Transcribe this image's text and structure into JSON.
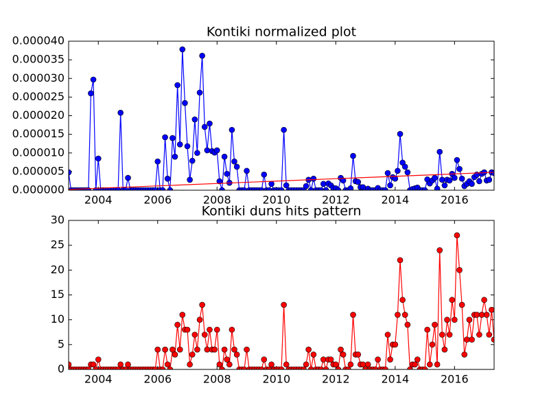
{
  "chart_data": [
    {
      "type": "line",
      "title": "Kontiki normalized plot",
      "xlim": [
        2003,
        2017.333
      ],
      "xticks": [
        2004,
        2006,
        2008,
        2010,
        2012,
        2014,
        2016
      ],
      "ylim": [
        0,
        4e-05
      ],
      "yticks": [
        {
          "value": 0,
          "label": "0.000000"
        },
        {
          "value": 5e-06,
          "label": "0.000005"
        },
        {
          "value": 1e-05,
          "label": "0.000010"
        },
        {
          "value": 1.5e-05,
          "label": "0.000015"
        },
        {
          "value": 2e-05,
          "label": "0.000020"
        },
        {
          "value": 2.5e-05,
          "label": "0.000025"
        },
        {
          "value": 3e-05,
          "label": "0.000030"
        },
        {
          "value": 3.5e-05,
          "label": "0.000035"
        },
        {
          "value": 4e-05,
          "label": "0.000040"
        }
      ],
      "series": [
        {
          "color": "#0000ff",
          "marker": true,
          "x": [
            2003,
            2003.083,
            2003.167,
            2003.25,
            2003.333,
            2003.417,
            2003.5,
            2003.583,
            2003.667,
            2003.75,
            2003.833,
            2003.917,
            2004,
            2004.083,
            2004.167,
            2004.25,
            2004.333,
            2004.417,
            2004.5,
            2004.583,
            2004.667,
            2004.75,
            2004.833,
            2004.917,
            2005,
            2005.083,
            2005.167,
            2005.25,
            2005.333,
            2005.417,
            2005.5,
            2005.583,
            2005.667,
            2005.75,
            2005.833,
            2005.917,
            2006,
            2006.083,
            2006.167,
            2006.25,
            2006.333,
            2006.417,
            2006.5,
            2006.583,
            2006.667,
            2006.75,
            2006.833,
            2006.917,
            2007,
            2007.083,
            2007.167,
            2007.25,
            2007.333,
            2007.417,
            2007.5,
            2007.583,
            2007.667,
            2007.75,
            2007.833,
            2007.917,
            2008,
            2008.083,
            2008.167,
            2008.25,
            2008.333,
            2008.417,
            2008.5,
            2008.583,
            2008.667,
            2008.75,
            2008.833,
            2008.917,
            2009,
            2009.083,
            2009.167,
            2009.25,
            2009.333,
            2009.417,
            2009.5,
            2009.583,
            2009.667,
            2009.75,
            2009.833,
            2009.917,
            2010,
            2010.083,
            2010.167,
            2010.25,
            2010.333,
            2010.417,
            2010.5,
            2010.583,
            2010.667,
            2010.75,
            2010.833,
            2010.917,
            2011,
            2011.083,
            2011.167,
            2011.25,
            2011.333,
            2011.417,
            2011.5,
            2011.583,
            2011.667,
            2011.75,
            2011.833,
            2011.917,
            2012,
            2012.083,
            2012.167,
            2012.25,
            2012.333,
            2012.417,
            2012.5,
            2012.583,
            2012.667,
            2012.75,
            2012.833,
            2012.917,
            2013,
            2013.083,
            2013.167,
            2013.25,
            2013.333,
            2013.417,
            2013.5,
            2013.583,
            2013.667,
            2013.75,
            2013.833,
            2013.917,
            2014,
            2014.083,
            2014.167,
            2014.25,
            2014.333,
            2014.417,
            2014.5,
            2014.583,
            2014.667,
            2014.75,
            2014.833,
            2014.917,
            2015,
            2015.083,
            2015.167,
            2015.25,
            2015.333,
            2015.417,
            2015.5,
            2015.583,
            2015.667,
            2015.75,
            2015.833,
            2015.917,
            2016,
            2016.083,
            2016.167,
            2016.25,
            2016.333,
            2016.417,
            2016.5,
            2016.583,
            2016.667,
            2016.75,
            2016.833,
            2016.917,
            2017,
            2017.083,
            2017.167,
            2017.25,
            2017.333
          ],
          "values": [
            4.8e-06,
            0,
            0,
            0,
            0,
            0,
            0,
            0,
            0,
            2.6e-05,
            2.97e-05,
            0,
            8.5e-06,
            0,
            0,
            0,
            0,
            0,
            0,
            0,
            0,
            2.08e-05,
            0,
            0,
            3.3e-06,
            0,
            0,
            0,
            0,
            0,
            0,
            0,
            0,
            0,
            0,
            0,
            7.7e-06,
            0,
            0,
            1.42e-05,
            3.1e-06,
            0,
            1.4e-05,
            9e-06,
            2.82e-05,
            1.23e-05,
            3.78e-05,
            2.34e-05,
            1.18e-05,
            2.8e-06,
            7.9e-06,
            1.9e-05,
            1e-05,
            2.62e-05,
            3.61e-05,
            1.7e-05,
            1.07e-05,
            1.79e-05,
            1.05e-05,
            1.01e-05,
            1.07e-05,
            2.4e-06,
            0,
            9e-06,
            4.4e-06,
            2e-06,
            1.62e-05,
            7.7e-06,
            6.3e-06,
            0,
            0,
            0,
            5.2e-06,
            0,
            0,
            0,
            0,
            0,
            0,
            4.2e-06,
            0,
            0,
            1.7e-06,
            0,
            0,
            0,
            0,
            1.62e-05,
            1.3e-06,
            0,
            0,
            0,
            0,
            0,
            0,
            0,
            1.1e-06,
            2.8e-06,
            0,
            3.1e-06,
            0,
            0,
            0,
            1.7e-06,
            0,
            1.8e-06,
            1.3e-06,
            6e-07,
            5e-07,
            0,
            3.3e-06,
            2.6e-06,
            0,
            0,
            5e-07,
            9.2e-06,
            2.4e-06,
            2.2e-06,
            8e-07,
            8e-07,
            0,
            4e-07,
            0,
            0,
            0,
            6e-07,
            0,
            0,
            0,
            4.6e-06,
            1.3e-06,
            3.5e-06,
            3.1e-06,
            5.2e-06,
            1.51e-05,
            7.4e-06,
            6.3e-06,
            4.8e-06,
            0,
            3e-07,
            5e-07,
            7e-07,
            0,
            0,
            0,
            2.9e-06,
            1.8e-06,
            2.6e-06,
            3.3e-06,
            4e-07,
            1.03e-05,
            2.8e-06,
            1.3e-06,
            2.8e-06,
            2.6e-06,
            4.4e-06,
            3.3e-06,
            8.1e-06,
            5.7e-06,
            3.1e-06,
            1.1e-06,
            1.7e-06,
            2.4e-06,
            1.7e-06,
            3.5e-06,
            4.2e-06,
            2.4e-06,
            4.4e-06,
            4.8e-06,
            2.6e-06,
            2.8e-06,
            4.8e-06,
            4.6e-06
          ]
        },
        {
          "color": "#ff0000",
          "marker": false,
          "x": [
            2003,
            2017.333
          ],
          "values": [
            2e-07,
            4.8e-06
          ]
        }
      ]
    },
    {
      "type": "line",
      "title": "Kontiki duns hits pattern",
      "xlim": [
        2003,
        2017.333
      ],
      "xticks": [
        2004,
        2006,
        2008,
        2010,
        2012,
        2014,
        2016
      ],
      "ylim": [
        0,
        30
      ],
      "yticks": [
        0,
        5,
        10,
        15,
        20,
        25,
        30
      ],
      "series": [
        {
          "color": "#ff0000",
          "marker": true,
          "x": [
            2003,
            2003.083,
            2003.167,
            2003.25,
            2003.333,
            2003.417,
            2003.5,
            2003.583,
            2003.667,
            2003.75,
            2003.833,
            2003.917,
            2004,
            2004.083,
            2004.167,
            2004.25,
            2004.333,
            2004.417,
            2004.5,
            2004.583,
            2004.667,
            2004.75,
            2004.833,
            2004.917,
            2005,
            2005.083,
            2005.167,
            2005.25,
            2005.333,
            2005.417,
            2005.5,
            2005.583,
            2005.667,
            2005.75,
            2005.833,
            2005.917,
            2006,
            2006.083,
            2006.167,
            2006.25,
            2006.333,
            2006.417,
            2006.5,
            2006.583,
            2006.667,
            2006.75,
            2006.833,
            2006.917,
            2007,
            2007.083,
            2007.167,
            2007.25,
            2007.333,
            2007.417,
            2007.5,
            2007.583,
            2007.667,
            2007.75,
            2007.833,
            2007.917,
            2008,
            2008.083,
            2008.167,
            2008.25,
            2008.333,
            2008.417,
            2008.5,
            2008.583,
            2008.667,
            2008.75,
            2008.833,
            2008.917,
            2009,
            2009.083,
            2009.167,
            2009.25,
            2009.333,
            2009.417,
            2009.5,
            2009.583,
            2009.667,
            2009.75,
            2009.833,
            2009.917,
            2010,
            2010.083,
            2010.167,
            2010.25,
            2010.333,
            2010.417,
            2010.5,
            2010.583,
            2010.667,
            2010.75,
            2010.833,
            2010.917,
            2011,
            2011.083,
            2011.167,
            2011.25,
            2011.333,
            2011.417,
            2011.5,
            2011.583,
            2011.667,
            2011.75,
            2011.833,
            2011.917,
            2012,
            2012.083,
            2012.167,
            2012.25,
            2012.333,
            2012.417,
            2012.5,
            2012.583,
            2012.667,
            2012.75,
            2012.833,
            2012.917,
            2013,
            2013.083,
            2013.167,
            2013.25,
            2013.333,
            2013.417,
            2013.5,
            2013.583,
            2013.667,
            2013.75,
            2013.833,
            2013.917,
            2014,
            2014.083,
            2014.167,
            2014.25,
            2014.333,
            2014.417,
            2014.5,
            2014.583,
            2014.667,
            2014.75,
            2014.833,
            2014.917,
            2015,
            2015.083,
            2015.167,
            2015.25,
            2015.333,
            2015.417,
            2015.5,
            2015.583,
            2015.667,
            2015.75,
            2015.833,
            2015.917,
            2016,
            2016.083,
            2016.167,
            2016.25,
            2016.333,
            2016.417,
            2016.5,
            2016.583,
            2016.667,
            2016.75,
            2016.833,
            2016.917,
            2017,
            2017.083,
            2017.167,
            2017.25,
            2017.333
          ],
          "values": [
            1,
            0,
            0,
            0,
            0,
            0,
            0,
            0,
            0,
            1,
            1,
            0,
            2,
            0,
            0,
            0,
            0,
            0,
            0,
            0,
            0,
            1,
            0,
            0,
            1,
            0,
            0,
            0,
            0,
            0,
            0,
            0,
            0,
            0,
            0,
            0,
            4,
            0,
            0,
            4,
            1,
            0,
            4,
            3,
            9,
            4,
            11,
            8,
            8,
            1,
            3,
            7,
            4,
            10,
            13,
            7,
            4,
            8,
            4,
            4,
            8,
            1,
            0,
            4,
            2,
            1,
            8,
            4,
            3,
            0,
            0,
            0,
            4,
            0,
            0,
            0,
            0,
            0,
            0,
            2,
            0,
            0,
            1,
            0,
            0,
            0,
            0,
            13,
            1,
            0,
            0,
            0,
            0,
            0,
            0,
            0,
            1,
            4,
            0,
            3,
            0,
            0,
            0,
            2,
            0,
            2,
            2,
            1,
            1,
            0,
            4,
            3,
            0,
            0,
            1,
            11,
            3,
            3,
            1,
            1,
            0,
            1,
            0,
            0,
            0,
            2,
            0,
            0,
            0,
            7,
            2,
            5,
            5,
            11,
            22,
            14,
            11,
            9,
            0,
            1,
            1,
            2,
            0,
            0,
            0,
            8,
            1,
            5,
            9,
            1,
            24,
            7,
            4,
            10,
            7,
            14,
            10,
            27,
            20,
            13,
            3,
            6,
            10,
            6,
            11,
            11,
            7,
            11,
            14,
            11,
            7,
            12,
            6
          ]
        }
      ]
    }
  ]
}
